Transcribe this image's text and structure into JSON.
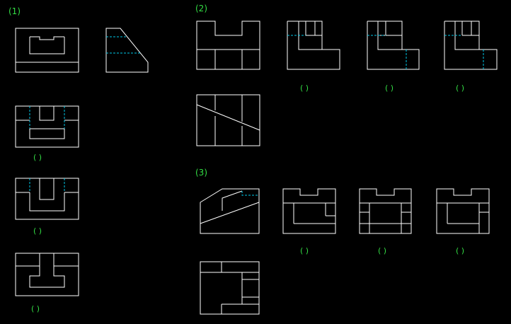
{
  "labels": {
    "p1": "(1)",
    "p2": "(2)",
    "p3": "(3)",
    "blank": "( )"
  },
  "colors": {
    "background": "#000000",
    "outline": "#ffffff",
    "hidden": "#00c8e8",
    "text": "#33dd44"
  }
}
